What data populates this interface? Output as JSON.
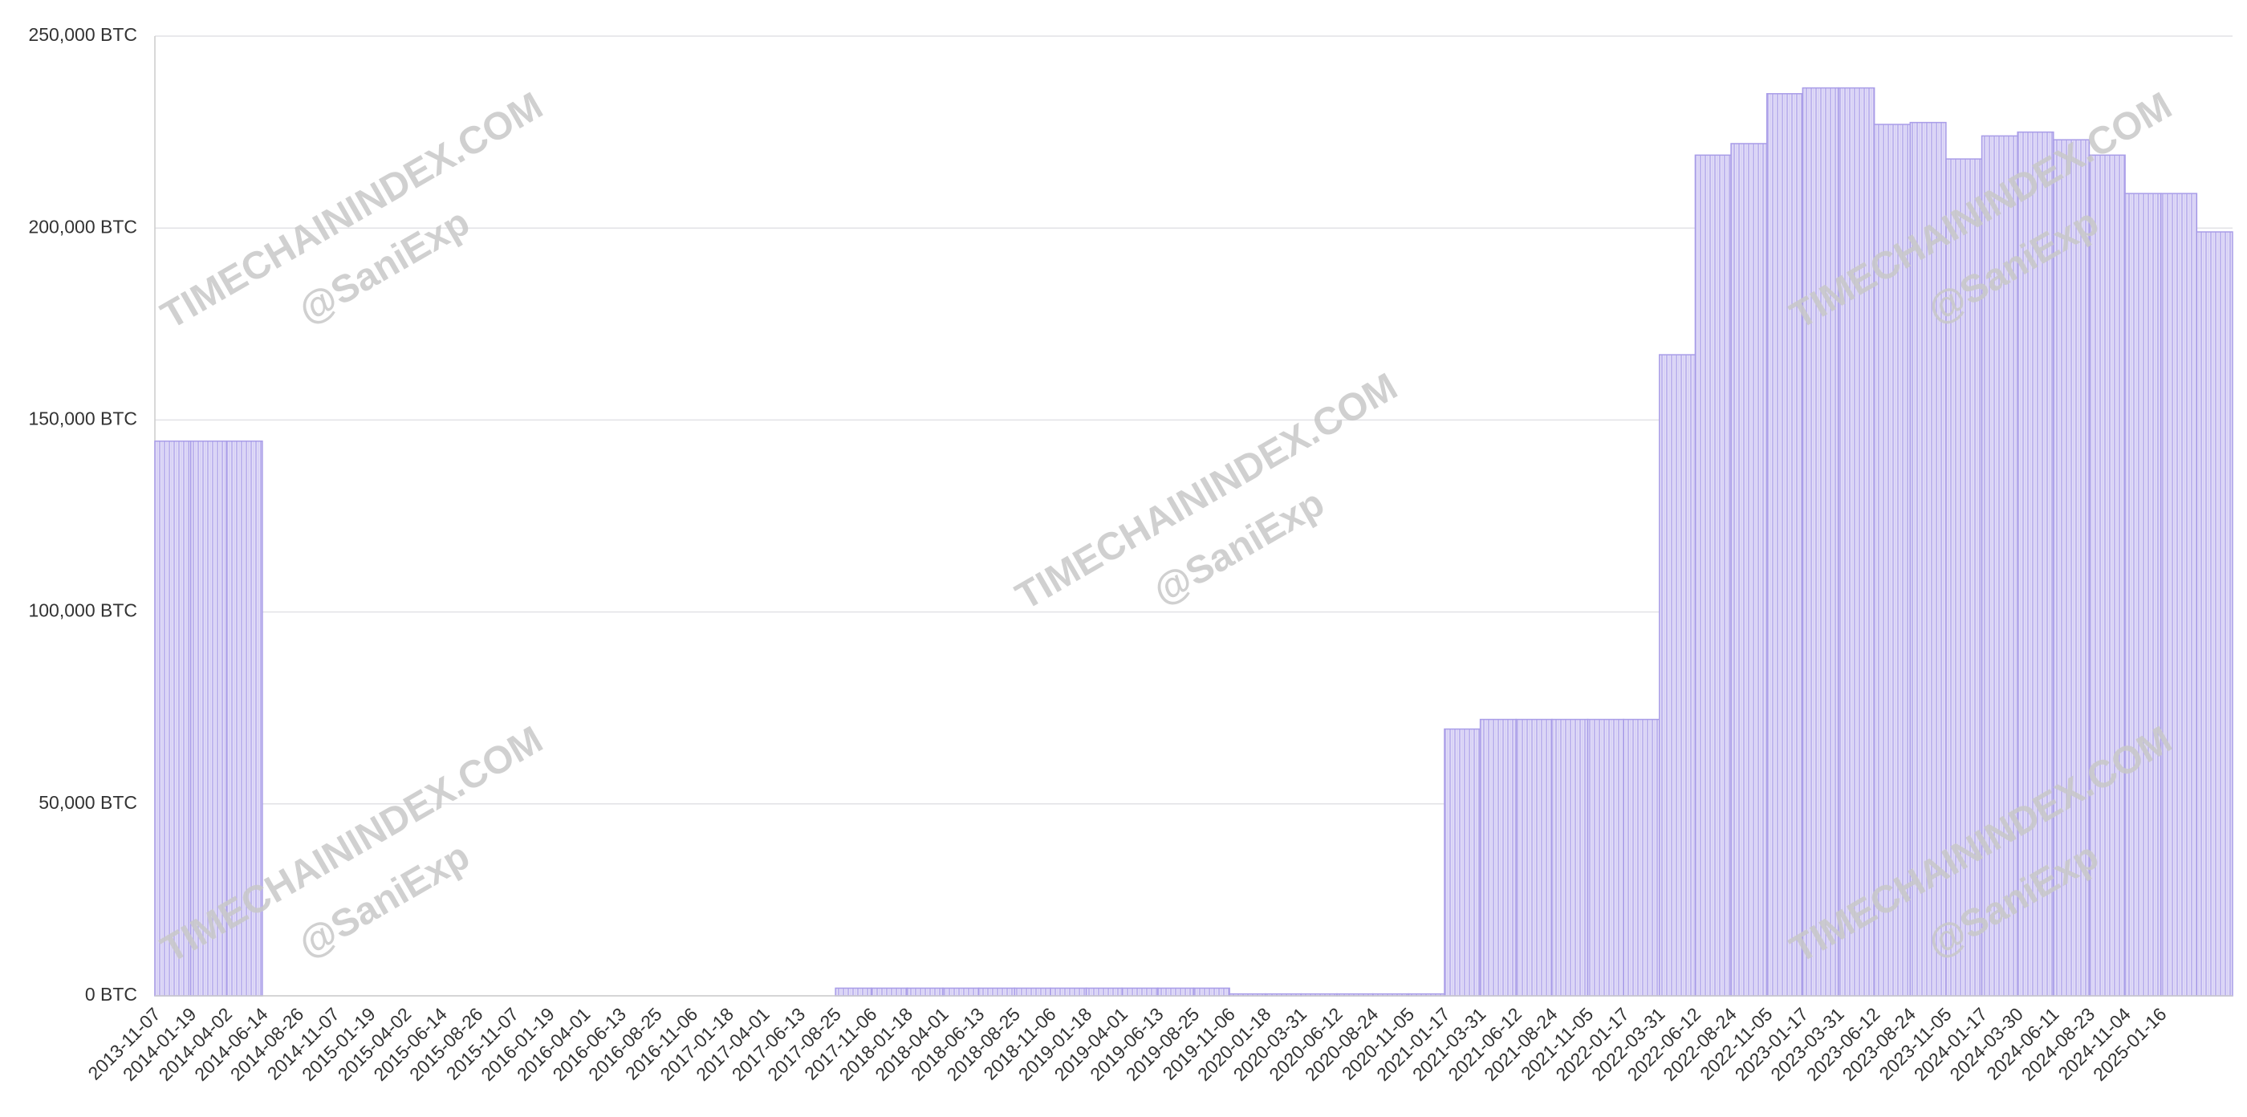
{
  "chart_data": {
    "type": "bar",
    "categories": [
      "2013-11-07",
      "2014-01-19",
      "2014-04-02",
      "2014-06-14",
      "2014-08-26",
      "2014-11-07",
      "2015-01-19",
      "2015-04-02",
      "2015-06-14",
      "2015-08-26",
      "2015-11-07",
      "2016-01-19",
      "2016-04-01",
      "2016-06-13",
      "2016-08-25",
      "2016-11-06",
      "2017-01-18",
      "2017-04-01",
      "2017-06-13",
      "2017-08-25",
      "2017-11-06",
      "2018-01-18",
      "2018-04-01",
      "2018-06-13",
      "2018-08-25",
      "2018-11-06",
      "2019-01-18",
      "2019-04-01",
      "2019-06-13",
      "2019-08-25",
      "2019-11-06",
      "2020-01-18",
      "2020-03-31",
      "2020-06-12",
      "2020-08-24",
      "2020-11-05",
      "2021-01-17",
      "2021-03-31",
      "2021-06-12",
      "2021-08-24",
      "2021-11-05",
      "2022-01-17",
      "2022-03-31",
      "2022-06-12",
      "2022-08-24",
      "2022-11-05",
      "2023-01-17",
      "2023-03-31",
      "2023-06-12",
      "2023-08-24",
      "2023-11-05",
      "2024-01-17",
      "2024-03-30",
      "2024-06-11",
      "2024-08-23",
      "2024-11-04",
      "2025-01-16",
      null
    ],
    "values": [
      144500,
      144500,
      144500,
      0,
      0,
      0,
      0,
      0,
      0,
      0,
      0,
      0,
      0,
      0,
      0,
      0,
      0,
      0,
      0,
      2000,
      2000,
      2000,
      2000,
      2000,
      2000,
      2000,
      2000,
      2000,
      2000,
      2000,
      500,
      500,
      500,
      500,
      500,
      500,
      69500,
      72000,
      72000,
      72000,
      72000,
      72000,
      167000,
      219000,
      222000,
      235000,
      236500,
      236500,
      227000,
      227500,
      218000,
      224000,
      225000,
      223000,
      219000,
      209000,
      209000,
      199000
    ],
    "color": "#a99de8",
    "ylim": [
      0,
      250000
    ],
    "yticks": [
      {
        "value": 0,
        "label": "0 BTC"
      },
      {
        "value": 50000,
        "label": "50,000 BTC"
      },
      {
        "value": 100000,
        "label": "100,000 BTC"
      },
      {
        "value": 150000,
        "label": "150,000 BTC"
      },
      {
        "value": 200000,
        "label": "200,000 BTC"
      },
      {
        "value": 250000,
        "label": "250,000 BTC"
      }
    ],
    "grid": true,
    "watermark": [
      "TIMECHAININDEX.COM",
      "@SaniExp"
    ]
  }
}
